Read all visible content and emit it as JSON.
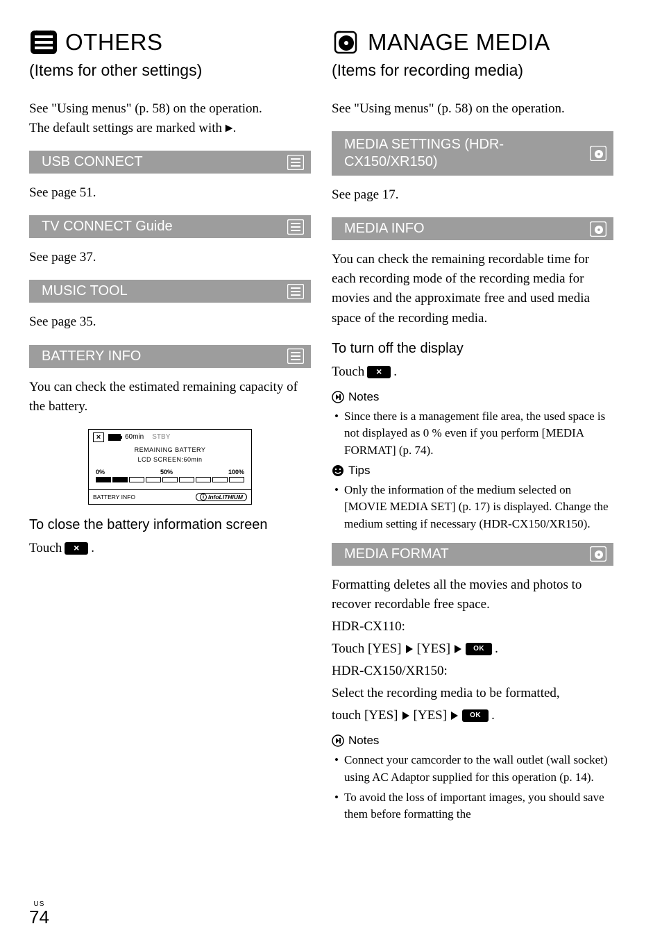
{
  "left": {
    "heading": "OTHERS",
    "subtitle": "(Items for other settings)",
    "intro_line1": "See \"Using menus\" (p. 58) on the operation.",
    "intro_line2": "The default settings are marked with ",
    "sections": {
      "usb": {
        "title": "USB CONNECT",
        "desc": "See page 51."
      },
      "tv": {
        "title": "TV CONNECT Guide",
        "desc": "See page 37."
      },
      "music": {
        "title": "MUSIC TOOL",
        "desc": "See page 35."
      },
      "battery": {
        "title": "BATTERY INFO",
        "desc": "You can check the estimated remaining capacity of the battery.",
        "screen": {
          "time": "60min",
          "stby": "STBY",
          "l1": "REMAINING BATTERY",
          "l2": "LCD SCREEN:60min",
          "scale": {
            "a": "0%",
            "b": "50%",
            "c": "100%"
          },
          "bottom_left": "BATTERY INFO",
          "brand": "InfoLITHIUM",
          "filled_segments": 2,
          "total_segments": 9
        },
        "close_heading": "To close the battery information screen",
        "close_touch": "Touch"
      }
    }
  },
  "right": {
    "heading": "MANAGE MEDIA",
    "subtitle": "(Items for recording media)",
    "intro": "See \"Using menus\" (p. 58) on the operation.",
    "media_settings": {
      "title": "MEDIA SETTINGS (HDR-CX150/XR150)",
      "desc": "See page 17."
    },
    "media_info": {
      "title": "MEDIA INFO",
      "desc": "You can check the remaining recordable time for each recording mode of the recording media for movies and the approximate free and used media space of the recording media.",
      "turnoff_heading": "To turn off the display",
      "turnoff_touch": "Touch",
      "notes_label": "Notes",
      "notes": [
        "Since there is a management file area, the used space is not displayed as 0 % even if you perform [MEDIA FORMAT] (p. 74)."
      ],
      "tips_label": "Tips",
      "tips": [
        "Only the information of the medium selected on [MOVIE MEDIA SET] (p. 17) is displayed. Change the medium setting if necessary (HDR-CX150/XR150)."
      ]
    },
    "media_format": {
      "title": "MEDIA FORMAT",
      "desc": "Formatting deletes all the movies and photos to recover recordable free space.",
      "model1": "HDR-CX110:",
      "model1_line_pre": "Touch [YES]",
      "yes2": "[YES]",
      "model2": "HDR-CX150/XR150:",
      "model2_desc": "Select the recording media to be formatted,",
      "model2_line_pre": "touch [YES]",
      "notes_label": "Notes",
      "notes": [
        "Connect your camcorder to the wall outlet (wall socket) using AC Adaptor supplied for this operation (p. 14).",
        "To avoid the loss of important images, you should save them before formatting the"
      ]
    }
  },
  "page": {
    "us": "US",
    "num": "74"
  },
  "icons": {
    "ok_label": "OK"
  }
}
